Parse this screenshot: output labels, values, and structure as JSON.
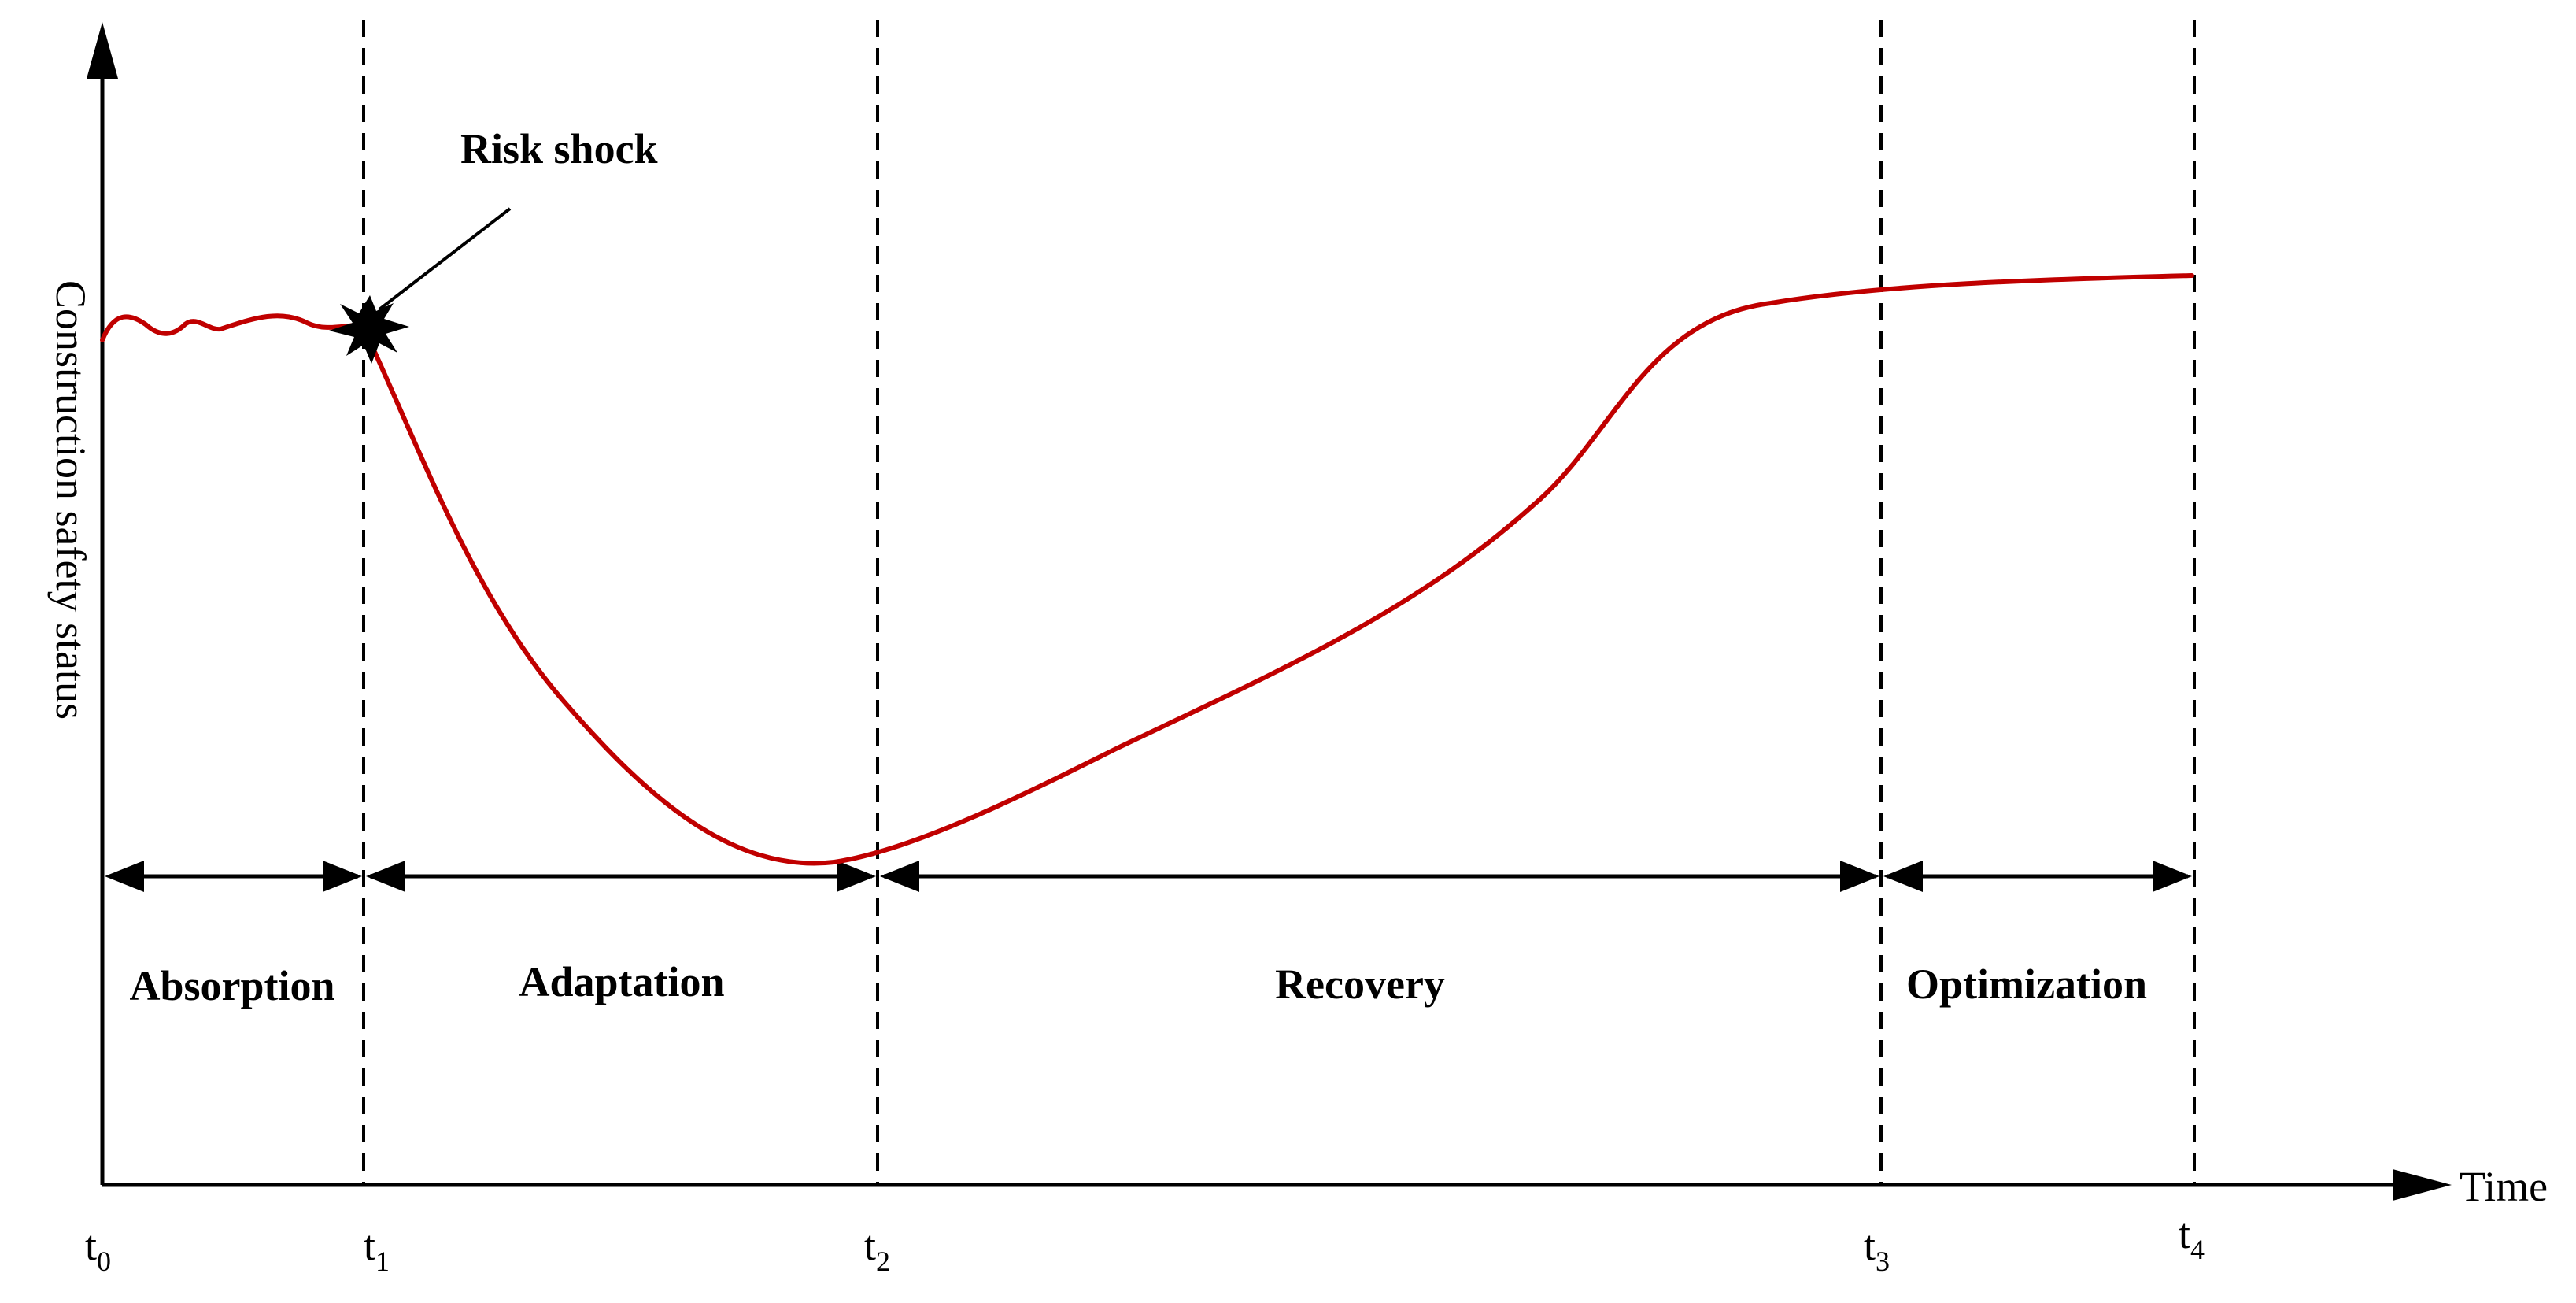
{
  "diagram": {
    "y_axis_label": "Construction safety status",
    "x_axis_label": "Time",
    "time_points": [
      {
        "base": "t",
        "sub": "0"
      },
      {
        "base": "t",
        "sub": "1"
      },
      {
        "base": "t",
        "sub": "2"
      },
      {
        "base": "t",
        "sub": "3"
      },
      {
        "base": "t",
        "sub": "4"
      }
    ],
    "phases": [
      "Absorption",
      "Adaptation",
      "Recovery",
      "Optimization"
    ],
    "annotation": "Risk shock",
    "colors": {
      "curve": "#c00000",
      "axes": "#000000",
      "dashed_lines": "#000000"
    }
  }
}
